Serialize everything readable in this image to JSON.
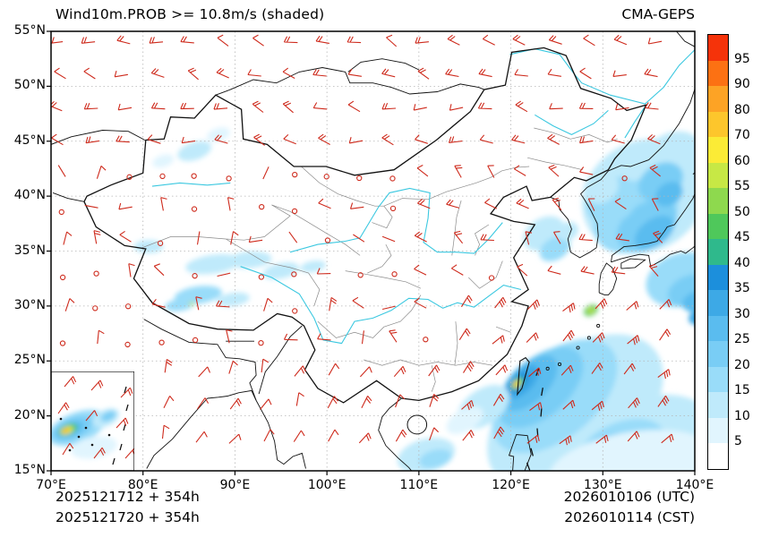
{
  "header": {
    "title": "Wind10m.PROB >= 10.8m/s (shaded)",
    "model": "CMA-GEPS"
  },
  "axes": {
    "lat_ticks": [
      "55°N",
      "50°N",
      "45°N",
      "40°N",
      "35°N",
      "30°N",
      "25°N",
      "20°N",
      "15°N"
    ],
    "lon_ticks": [
      "70°E",
      "80°E",
      "90°E",
      "100°E",
      "110°E",
      "120°E",
      "130°E",
      "140°E"
    ]
  },
  "colorbar": {
    "tick_labels": [
      "95",
      "90",
      "80",
      "70",
      "60",
      "55",
      "50",
      "45",
      "40",
      "35",
      "30",
      "25",
      "20",
      "15",
      "10",
      "5"
    ],
    "colors": [
      "#F5330A",
      "#FC7113",
      "#FDA325",
      "#FDC62C",
      "#FBEB36",
      "#C7E845",
      "#8ED94E",
      "#4FC85B",
      "#2FB98C",
      "#1C8FDC",
      "#3DA9E6",
      "#5ABCEF",
      "#79CDF5",
      "#99DCF9",
      "#BFEAFB",
      "#E1F5FE",
      "#FFFFFF"
    ]
  },
  "footer": {
    "init_utc": "2025121712 + 354h",
    "init_cst": "2025121720 + 354h",
    "valid_utc": "2026010106 (UTC)",
    "valid_cst": "2026010114 (CST)"
  },
  "map": {
    "barb_color": "#CE2A1C",
    "coast_color": "#111111",
    "river_color": "#3BC8E0",
    "province_color": "#8a8a8a",
    "grid_color": "#b5b5b5"
  }
}
